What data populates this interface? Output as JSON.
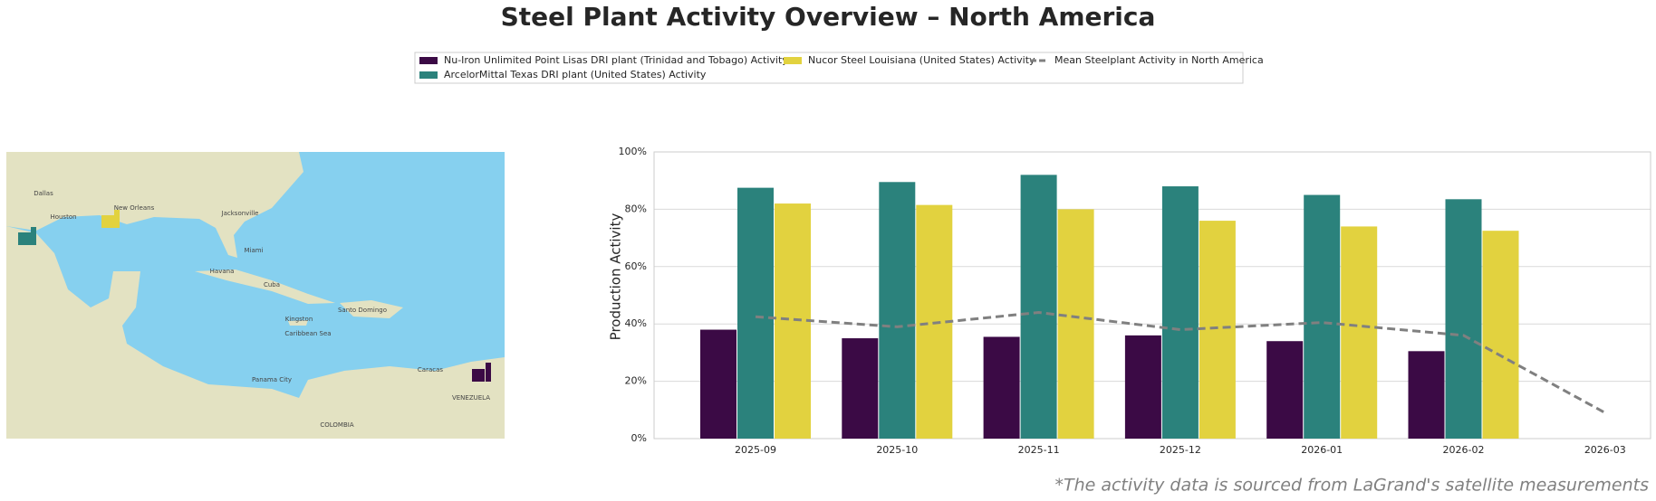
{
  "chart_data": {
    "type": "bar",
    "title": "Steel Plant Activity Overview – North America",
    "ylabel": "Production Activity",
    "footnote": "*The activity data is sourced from LaGrand's satellite measurements",
    "categories": [
      "2025-09",
      "2025-10",
      "2025-11",
      "2025-12",
      "2026-01",
      "2026-02",
      "2026-03"
    ],
    "series": [
      {
        "name": "Nu-Iron Unlimited Point Lisas DRI plant (Trinidad and Tobago) Activity",
        "color": "#3b0a45",
        "values": [
          38,
          35,
          35.5,
          36,
          34,
          30.5,
          null
        ]
      },
      {
        "name": "ArcelorMittal Texas DRI plant (United States) Activity",
        "color": "#2b827c",
        "values": [
          87.5,
          89.5,
          92,
          88,
          85,
          83.5,
          null
        ]
      },
      {
        "name": "Nucor Steel Louisiana (United States) Activity",
        "color": "#e2d23f",
        "values": [
          82,
          81.5,
          80,
          76,
          74,
          72.5,
          null
        ]
      },
      {
        "name": "Mean Steelplant Activity in North America",
        "color": "#808080",
        "type": "line",
        "dashed": true,
        "values": [
          42.5,
          39,
          44,
          38,
          40.5,
          36,
          9
        ]
      }
    ],
    "ylim": [
      0,
      100
    ],
    "yticks": [
      {
        "value": 0,
        "label": "0%"
      },
      {
        "value": 20,
        "label": "20%"
      },
      {
        "value": 40,
        "label": "40%"
      },
      {
        "value": 60,
        "label": "60%"
      },
      {
        "value": 80,
        "label": "80%"
      },
      {
        "value": 100,
        "label": "100%"
      }
    ],
    "grid": true,
    "legend": "top"
  },
  "map": {
    "labels": [
      "Dallas",
      "Houston",
      "New Orleans",
      "Jacksonville",
      "Miami",
      "Havana",
      "Cuba",
      "Kingston",
      "Santo Domingo",
      "Caribbean Sea",
      "Panama City",
      "Caracas",
      "VENEZUELA",
      "COLOMBIA"
    ]
  }
}
